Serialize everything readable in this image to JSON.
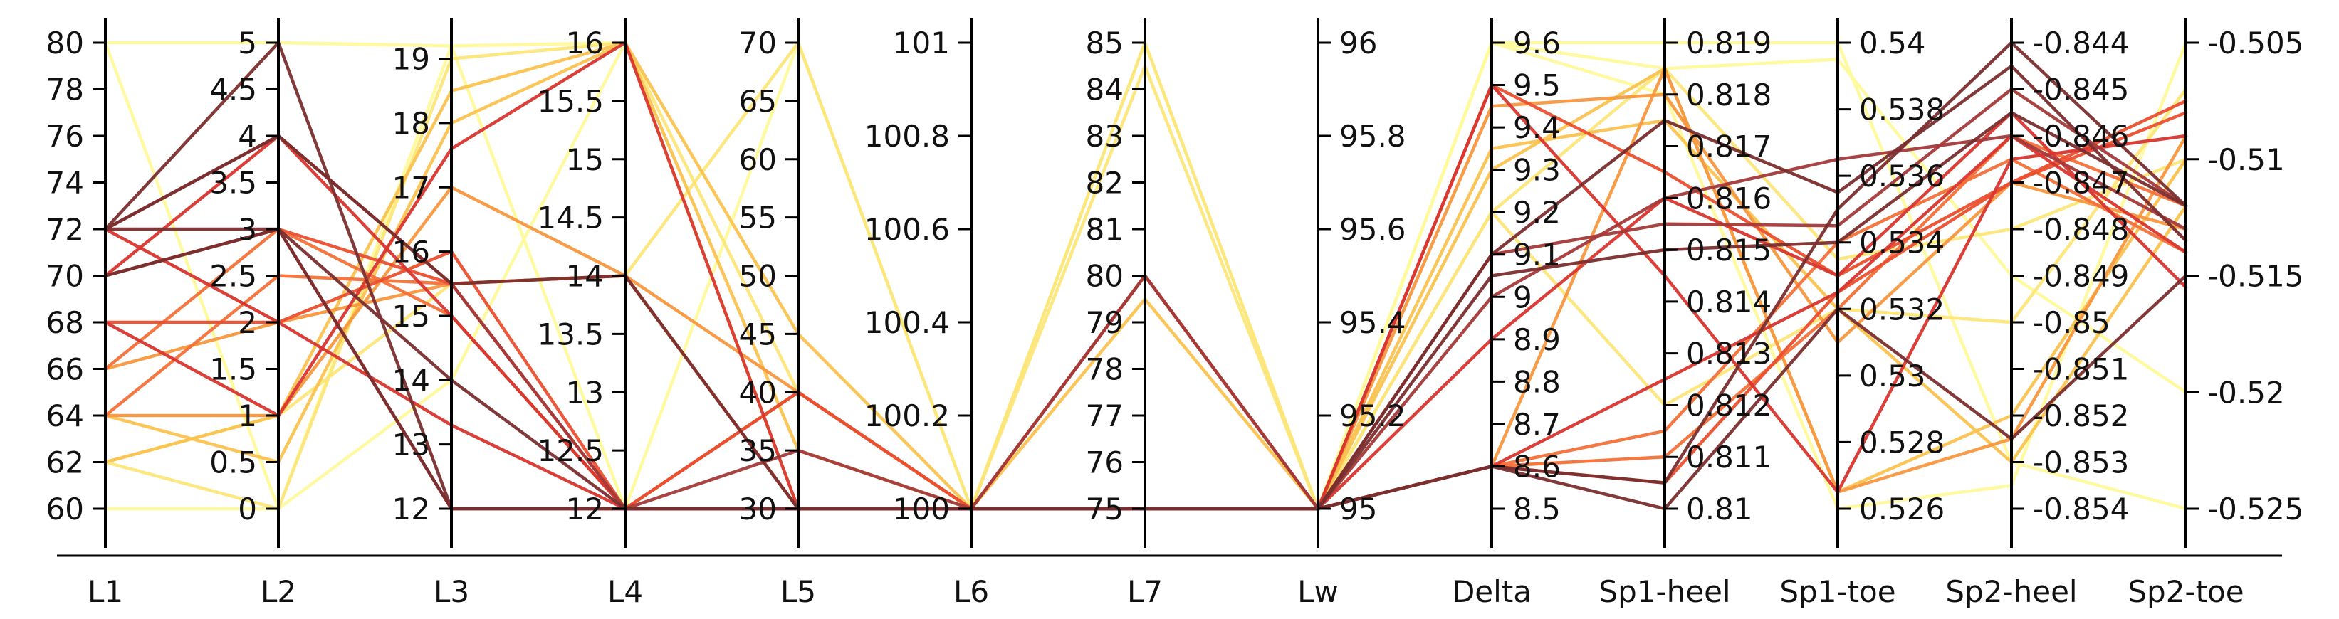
{
  "chart_data": {
    "type": "parallel_coordinates",
    "grid": false,
    "legend": "none",
    "colormap": [
      "#7a2e2e",
      "#a33a3a",
      "#d8362e",
      "#ea4f2f",
      "#f2713a",
      "#f7983f",
      "#fac350",
      "#fce67a",
      "#fffa9c"
    ],
    "axes": [
      {
        "name": "L1",
        "range": [
          60,
          80
        ],
        "ticks": [
          60,
          62,
          64,
          66,
          68,
          70,
          72,
          74,
          76,
          78,
          80
        ],
        "tick_labels": [
          "60",
          "62",
          "64",
          "66",
          "68",
          "70",
          "72",
          "74",
          "76",
          "78",
          "80"
        ],
        "label_side": "left"
      },
      {
        "name": "L2",
        "range": [
          0,
          5
        ],
        "ticks": [
          0,
          0.5,
          1,
          1.5,
          2,
          2.5,
          3,
          3.5,
          4,
          4.5,
          5
        ],
        "tick_labels": [
          "0",
          "0.5",
          "1",
          "1.5",
          "2",
          "2.5",
          "3",
          "3.5",
          "4",
          "4.5",
          "5"
        ],
        "label_side": "left"
      },
      {
        "name": "L3",
        "range": [
          12,
          19.25
        ],
        "ticks": [
          12,
          13,
          14,
          15,
          16,
          17,
          18,
          19
        ],
        "tick_labels": [
          "12",
          "13",
          "14",
          "15",
          "16",
          "17",
          "18",
          "19"
        ],
        "label_side": "left"
      },
      {
        "name": "L4",
        "range": [
          12,
          16
        ],
        "ticks": [
          12,
          12.5,
          13,
          13.5,
          14,
          14.5,
          15,
          15.5,
          16
        ],
        "tick_labels": [
          "12",
          "12.5",
          "13",
          "13.5",
          "14",
          "14.5",
          "15",
          "15.5",
          "16"
        ],
        "label_side": "left"
      },
      {
        "name": "L5",
        "range": [
          30,
          70
        ],
        "ticks": [
          30,
          35,
          40,
          45,
          50,
          55,
          60,
          65,
          70
        ],
        "tick_labels": [
          "30",
          "35",
          "40",
          "45",
          "50",
          "55",
          "60",
          "65",
          "70"
        ],
        "label_side": "left"
      },
      {
        "name": "L6",
        "range": [
          100,
          101
        ],
        "ticks": [
          100,
          100.2,
          100.4,
          100.6,
          100.8,
          101
        ],
        "tick_labels": [
          "100",
          "100.2",
          "100.4",
          "100.6",
          "100.8",
          "101"
        ],
        "label_side": "left"
      },
      {
        "name": "L7",
        "range": [
          75,
          85
        ],
        "ticks": [
          75,
          76,
          77,
          78,
          79,
          80,
          81,
          82,
          83,
          84,
          85
        ],
        "tick_labels": [
          "75",
          "76",
          "77",
          "78",
          "79",
          "80",
          "81",
          "82",
          "83",
          "84",
          "85"
        ],
        "label_side": "left"
      },
      {
        "name": "Lw",
        "range": [
          95,
          96
        ],
        "ticks": [
          95,
          95.2,
          95.4,
          95.6,
          95.8,
          96
        ],
        "tick_labels": [
          "95",
          "95.2",
          "95.4",
          "95.6",
          "95.8",
          "96"
        ],
        "label_side": "right"
      },
      {
        "name": "Delta",
        "range": [
          8.5,
          9.6
        ],
        "ticks": [
          8.5,
          8.6,
          8.7,
          8.8,
          8.9,
          9,
          9.1,
          9.2,
          9.3,
          9.4,
          9.5,
          9.6
        ],
        "tick_labels": [
          "8.5",
          "8.6",
          "8.7",
          "8.8",
          "8.9",
          "9",
          "9.1",
          "9.2",
          "9.3",
          "9.4",
          "9.5",
          "9.6"
        ],
        "label_side": "right"
      },
      {
        "name": "Sp1-heel",
        "range": [
          0.81,
          0.819
        ],
        "ticks": [
          0.81,
          0.811,
          0.812,
          0.813,
          0.814,
          0.815,
          0.816,
          0.817,
          0.818,
          0.819
        ],
        "tick_labels": [
          "0.81",
          "0.811",
          "0.812",
          "0.813",
          "0.814",
          "0.815",
          "0.816",
          "0.817",
          "0.818",
          "0.819"
        ],
        "label_side": "right"
      },
      {
        "name": "Sp1-toe",
        "range": [
          0.526,
          0.54
        ],
        "ticks": [
          0.526,
          0.528,
          0.53,
          0.532,
          0.534,
          0.536,
          0.538,
          0.54
        ],
        "tick_labels": [
          "0.526",
          "0.528",
          "0.53",
          "0.532",
          "0.534",
          "0.536",
          "0.538",
          "0.54"
        ],
        "label_side": "right"
      },
      {
        "name": "Sp2-heel",
        "range": [
          -0.854,
          -0.844
        ],
        "ticks": [
          -0.854,
          -0.853,
          -0.852,
          -0.851,
          -0.85,
          -0.849,
          -0.848,
          -0.847,
          -0.846,
          -0.845,
          -0.844
        ],
        "tick_labels": [
          "-0.854",
          "-0.853",
          "-0.852",
          "-0.851",
          "-0.85",
          "-0.849",
          "-0.848",
          "-0.847",
          "-0.846",
          "-0.845",
          "-0.844"
        ],
        "label_side": "right"
      },
      {
        "name": "Sp2-toe",
        "range": [
          -0.525,
          -0.505
        ],
        "ticks": [
          -0.525,
          -0.52,
          -0.515,
          -0.51,
          -0.505
        ],
        "tick_labels": [
          "-0.525",
          "-0.52",
          "-0.515",
          "-0.51",
          "-0.505"
        ],
        "label_side": "right"
      }
    ],
    "series": [
      {
        "color": "#fffa9c",
        "values": [
          80,
          5,
          19.2,
          16,
          30,
          100,
          75,
          95,
          9.6,
          0.819,
          0.54,
          -0.853,
          -0.525
        ]
      },
      {
        "color": "#fffa9c",
        "values": [
          80,
          0,
          19.2,
          12,
          70,
          100,
          85,
          95,
          9.6,
          0.8185,
          0.5395,
          -0.849,
          -0.52
        ]
      },
      {
        "color": "#fffa9c",
        "values": [
          60,
          0,
          14,
          16,
          30,
          100,
          75,
          95,
          9.6,
          0.818,
          0.526,
          -0.8535,
          -0.505
        ]
      },
      {
        "color": "#fce67a",
        "values": [
          62,
          0,
          19,
          16,
          40,
          100,
          85,
          95,
          9.2,
          0.8185,
          0.5335,
          -0.848,
          -0.51
        ]
      },
      {
        "color": "#fce67a",
        "values": [
          62,
          1,
          15.5,
          14,
          70,
          100,
          84.5,
          95,
          9.2,
          0.812,
          0.532,
          -0.85,
          -0.507
        ]
      },
      {
        "color": "#fac350",
        "values": [
          64,
          0.5,
          18,
          16,
          45,
          100,
          80,
          95,
          9.3,
          0.8185,
          0.5265,
          -0.852,
          -0.51
        ]
      },
      {
        "color": "#fac350",
        "values": [
          62,
          1,
          18.5,
          16,
          35,
          100,
          79.5,
          95,
          9.35,
          0.8175,
          0.532,
          -0.853,
          -0.512
        ]
      },
      {
        "color": "#f7983f",
        "values": [
          64,
          1,
          17,
          14,
          40,
          100,
          75,
          95,
          8.6,
          0.8185,
          0.5265,
          -0.8525,
          -0.509
        ]
      },
      {
        "color": "#f7983f",
        "values": [
          66,
          2,
          15.5,
          14,
          30,
          100,
          75,
          95,
          9.45,
          0.818,
          0.531,
          -0.847,
          -0.513
        ]
      },
      {
        "color": "#f2713a",
        "values": [
          66,
          3,
          15,
          12,
          40,
          100,
          75,
          95,
          8.6,
          0.811,
          0.532,
          -0.846,
          -0.512
        ]
      },
      {
        "color": "#f2713a",
        "values": [
          64,
          2.5,
          15.5,
          14,
          30,
          100,
          75,
          95,
          8.6,
          0.8115,
          0.534,
          -0.8465,
          -0.514
        ]
      },
      {
        "color": "#ea4f2f",
        "values": [
          68,
          2,
          16,
          12,
          40,
          100,
          75,
          95,
          9.5,
          0.8165,
          0.533,
          -0.847,
          -0.508
        ]
      },
      {
        "color": "#ea4f2f",
        "values": [
          70,
          3,
          15.5,
          12,
          40,
          100,
          75,
          95,
          8.6,
          0.8105,
          0.5325,
          -0.847,
          -0.5075
        ]
      },
      {
        "color": "#d8362e",
        "values": [
          68,
          1,
          17.6,
          16,
          30,
          100,
          80,
          95,
          9.5,
          0.8145,
          0.5265,
          -0.8465,
          -0.509
        ]
      },
      {
        "color": "#d8362e",
        "values": [
          70,
          4,
          15,
          12,
          30,
          100,
          75,
          95,
          8.6,
          0.8125,
          0.5325,
          -0.846,
          -0.514
        ]
      },
      {
        "color": "#d8362e",
        "values": [
          72,
          2,
          13.3,
          12,
          30,
          100,
          75,
          95,
          8.9,
          0.816,
          0.533,
          -0.8455,
          -0.5155
        ]
      },
      {
        "color": "#a33a3a",
        "values": [
          72,
          4,
          15.5,
          12,
          30,
          100,
          80,
          95,
          9.0,
          0.816,
          0.5365,
          -0.846,
          -0.513
        ]
      },
      {
        "color": "#a33a3a",
        "values": [
          70,
          3,
          12,
          12,
          35,
          100,
          75,
          95,
          9.1,
          0.8155,
          0.5345,
          -0.845,
          -0.512
        ]
      },
      {
        "color": "#7a2e2e",
        "values": [
          72,
          5,
          12,
          12,
          30,
          100,
          75,
          95,
          8.6,
          0.8105,
          0.535,
          -0.844,
          -0.512
        ]
      },
      {
        "color": "#7a2e2e",
        "values": [
          72,
          3,
          14,
          12,
          30,
          100,
          75,
          95,
          9.1,
          0.8175,
          0.5355,
          -0.8445,
          -0.5135
        ]
      },
      {
        "color": "#7a2e2e",
        "values": [
          72,
          4,
          15.5,
          14,
          30,
          100,
          75,
          95,
          9.05,
          0.815,
          0.534,
          -0.8455,
          -0.512
        ]
      },
      {
        "color": "#7a2e2e",
        "values": [
          70,
          3,
          12,
          12,
          30,
          100,
          75,
          95,
          8.6,
          0.81,
          0.532,
          -0.8525,
          -0.515
        ]
      }
    ]
  }
}
